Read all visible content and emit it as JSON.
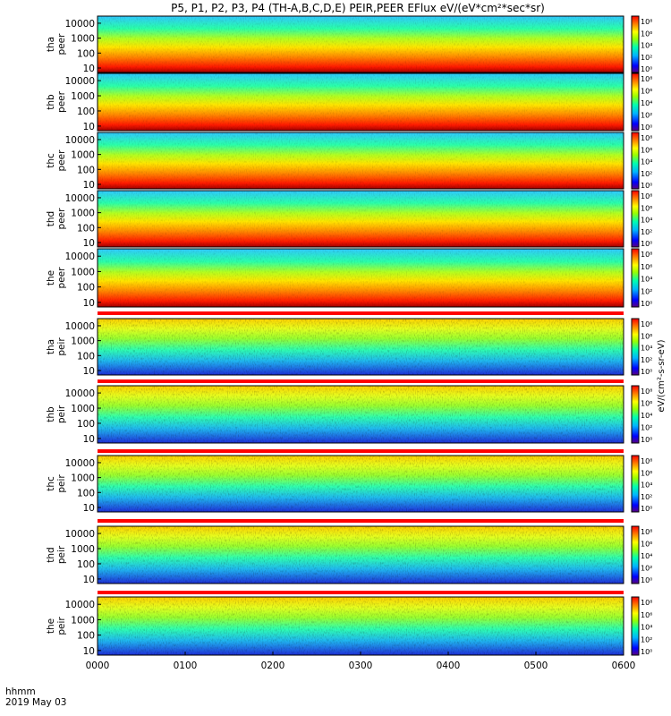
{
  "chart_data": {
    "type": "heatmap",
    "title": "P5, P1, P2, P3, P4 (TH-A,B,C,D,E) PEIR,PEER EFlux eV/(eV*cm²*sec*sr)",
    "xlabel": "hhmm",
    "date_label": "2019 May 03",
    "x_ticks": [
      "0000",
      "0100",
      "0200",
      "0300",
      "0400",
      "0500",
      "0600"
    ],
    "xlim": [
      "0000",
      "0600"
    ],
    "y_scale": "log",
    "ylim": [
      5,
      30000
    ],
    "y_ticks": [
      "10000",
      "1000",
      "100",
      "10"
    ],
    "colorbar": {
      "scale": "log",
      "label": "eV/(cm²-s-sr-eV)",
      "ticks_upper": [
        "10⁸",
        "10⁶",
        "10⁴",
        "10²",
        "10⁰"
      ],
      "ticks_lower": [
        "10⁶",
        "10⁵",
        "10⁴",
        "10³",
        "10²",
        "10¹",
        "10⁰"
      ]
    },
    "panels": [
      {
        "probe": "tha",
        "instrument": "peer"
      },
      {
        "probe": "thb",
        "instrument": "peer"
      },
      {
        "probe": "thc",
        "instrument": "peer"
      },
      {
        "probe": "thd",
        "instrument": "peer"
      },
      {
        "probe": "the",
        "instrument": "peer"
      },
      {
        "probe": "tha",
        "instrument": "peir"
      },
      {
        "probe": "thb",
        "instrument": "peir"
      },
      {
        "probe": "thc",
        "instrument": "peir"
      },
      {
        "probe": "thd",
        "instrument": "peir"
      },
      {
        "probe": "the",
        "instrument": "peir"
      }
    ]
  },
  "colors": {
    "background": "#ffffff",
    "mode_bar_red": "#ff0000",
    "mode_bar_yellow": "#ffff00"
  }
}
